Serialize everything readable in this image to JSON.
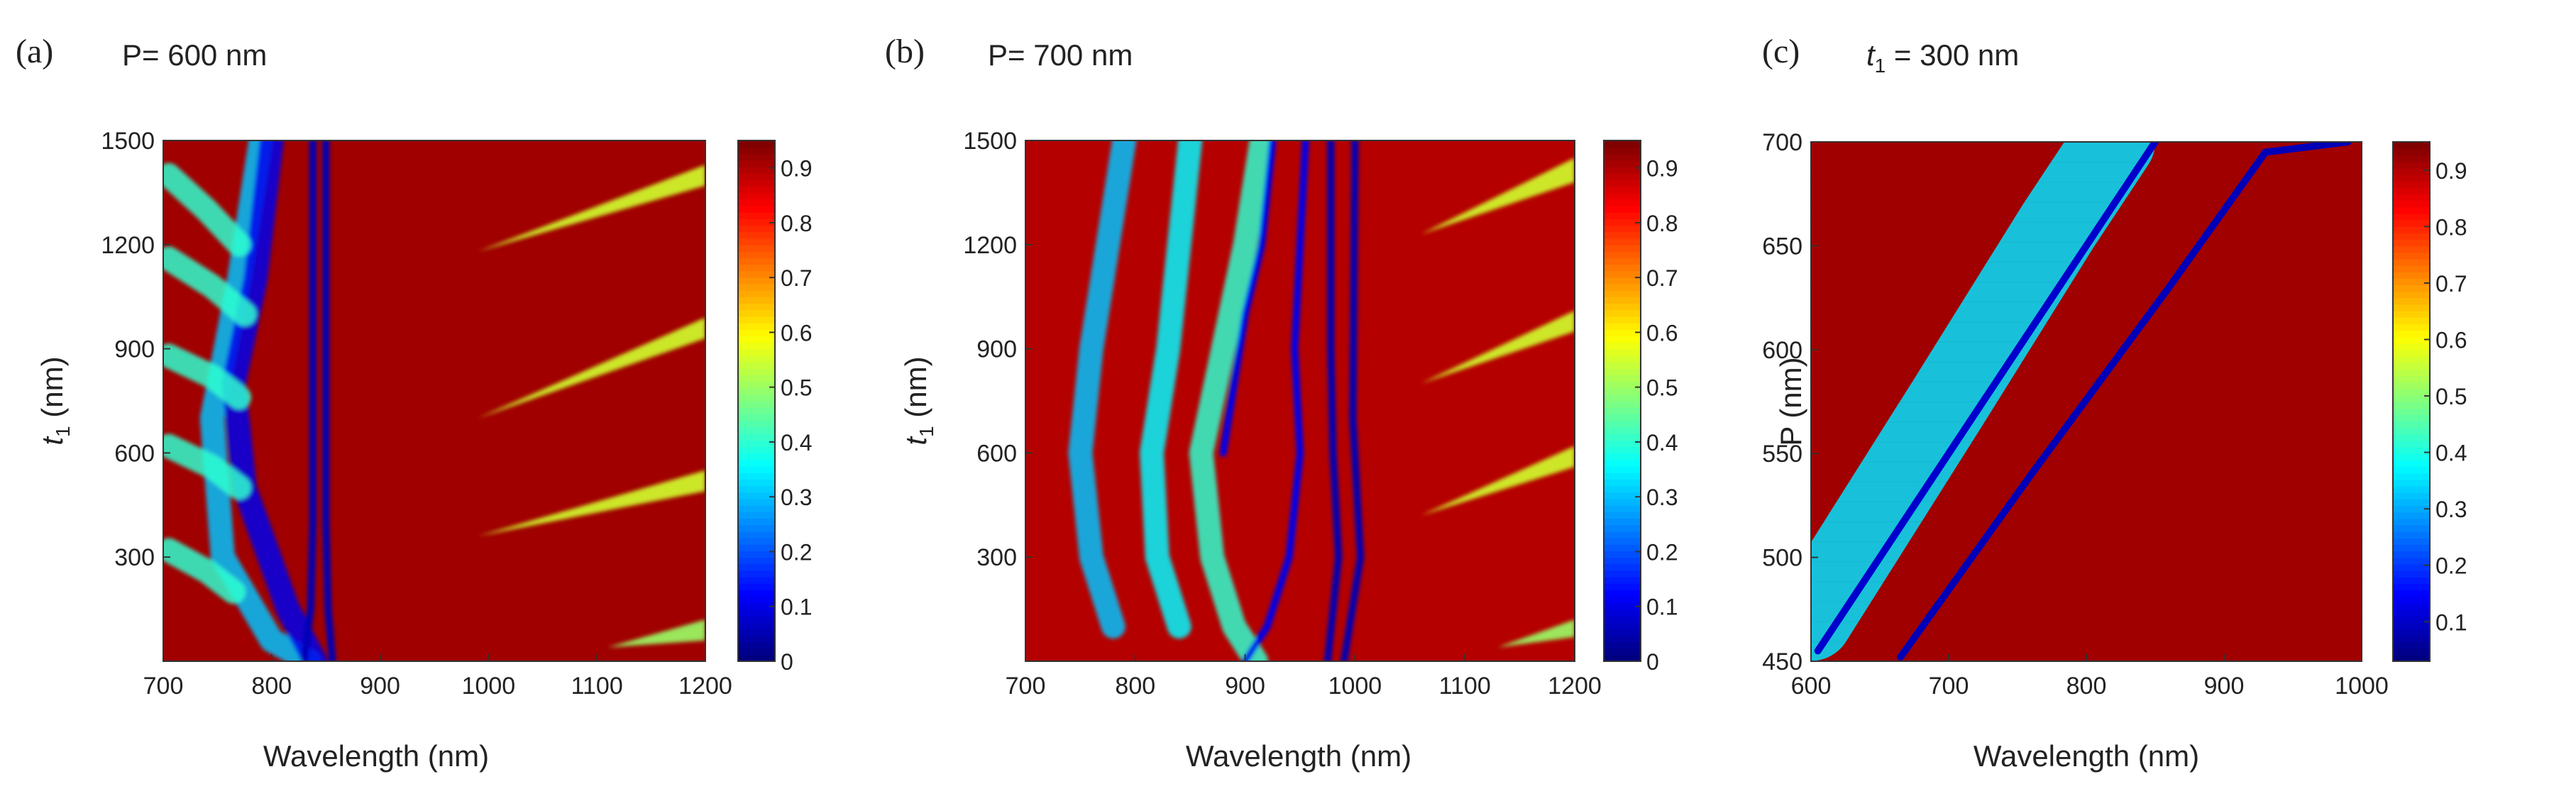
{
  "figure": {
    "panels": [
      {
        "letter": "(a)",
        "title": "P= 600 nm",
        "xlabel": "Wavelength (nm)",
        "ylabel_var": "t",
        "ylabel_sub": "1",
        "ylabel_unit": " (nm)",
        "colorbar_ticks": [
          "0",
          "0.1",
          "0.2",
          "0.3",
          "0.4",
          "0.5",
          "0.6",
          "0.7",
          "0.8",
          "0.9"
        ]
      },
      {
        "letter": "(b)",
        "title": "P= 700 nm",
        "xlabel": "Wavelength (nm)",
        "ylabel_var": "t",
        "ylabel_sub": "1",
        "ylabel_unit": " (nm)",
        "colorbar_ticks": [
          "0",
          "0.1",
          "0.2",
          "0.3",
          "0.4",
          "0.5",
          "0.6",
          "0.7",
          "0.8",
          "0.9"
        ]
      },
      {
        "letter": "(c)",
        "title_var": "t",
        "title_sub": "1",
        "title_rest": " = 300 nm",
        "xlabel": "Wavelength (nm)",
        "ylabel": "P  (nm)",
        "colorbar_ticks": [
          "0.1",
          "0.2",
          "0.3",
          "0.4",
          "0.5",
          "0.6",
          "0.7",
          "0.8",
          "0.9"
        ]
      }
    ]
  },
  "chart_data": [
    {
      "type": "heatmap",
      "panel": "(a)",
      "title": "P= 600 nm",
      "xlabel": "Wavelength (nm)",
      "ylabel": "t1 (nm)",
      "x_range": [
        700,
        1200
      ],
      "y_range": [
        0,
        1500
      ],
      "x_ticks": [
        700,
        800,
        900,
        1000,
        1100,
        1200
      ],
      "y_ticks": [
        300,
        600,
        900,
        1200,
        1500
      ],
      "color_range": [
        0,
        0.95
      ],
      "colorbar_ticks": [
        0,
        0.1,
        0.2,
        0.3,
        0.4,
        0.5,
        0.6,
        0.7,
        0.8,
        0.9
      ],
      "colormap": "jet",
      "background_value": 0.92,
      "features": [
        {
          "kind": "band",
          "points": [
            [
              790,
              1500
            ],
            [
              770,
              1100
            ],
            [
              745,
              700
            ],
            [
              755,
              300
            ],
            [
              800,
              60
            ],
            [
              835,
              0
            ]
          ],
          "value": 0.3
        },
        {
          "kind": "band",
          "points": [
            [
              800,
              1500
            ],
            [
              785,
              1100
            ],
            [
              765,
              800
            ],
            [
              775,
              500
            ],
            [
              815,
              150
            ],
            [
              840,
              0
            ]
          ],
          "value": 0.1
        },
        {
          "kind": "band",
          "points": [
            [
              705,
              1400
            ],
            [
              740,
              1300
            ],
            [
              770,
              1200
            ]
          ],
          "value": 0.4
        },
        {
          "kind": "band",
          "points": [
            [
              705,
              1160
            ],
            [
              745,
              1080
            ],
            [
              775,
              1000
            ]
          ],
          "value": 0.4
        },
        {
          "kind": "band",
          "points": [
            [
              705,
              880
            ],
            [
              745,
              820
            ],
            [
              770,
              760
            ]
          ],
          "value": 0.4
        },
        {
          "kind": "band",
          "points": [
            [
              705,
              620
            ],
            [
              745,
              560
            ],
            [
              770,
              500
            ]
          ],
          "value": 0.4
        },
        {
          "kind": "band",
          "points": [
            [
              705,
              320
            ],
            [
              740,
              260
            ],
            [
              765,
              200
            ]
          ],
          "value": 0.4
        },
        {
          "kind": "line",
          "points": [
            [
              838,
              1500
            ],
            [
              838,
              400
            ],
            [
              836,
              150
            ],
            [
              830,
              0
            ]
          ],
          "value": 0.05
        },
        {
          "kind": "line",
          "points": [
            [
              850,
              1500
            ],
            [
              850,
              400
            ],
            [
              852,
              150
            ],
            [
              856,
              0
            ]
          ],
          "value": 0.05
        },
        {
          "kind": "wedge",
          "points": [
            [
              1200,
              1430
            ],
            [
              990,
              1180
            ],
            [
              1200,
              1370
            ]
          ],
          "value": 0.55
        },
        {
          "kind": "wedge",
          "points": [
            [
              1200,
              990
            ],
            [
              990,
              700
            ],
            [
              1200,
              930
            ]
          ],
          "value": 0.55
        },
        {
          "kind": "wedge",
          "points": [
            [
              1200,
              550
            ],
            [
              990,
              360
            ],
            [
              1200,
              490
            ]
          ],
          "value": 0.55
        },
        {
          "kind": "wedge",
          "points": [
            [
              1200,
              120
            ],
            [
              1110,
              40
            ],
            [
              1200,
              60
            ]
          ],
          "value": 0.5
        }
      ]
    },
    {
      "type": "heatmap",
      "panel": "(b)",
      "title": "P= 700 nm",
      "xlabel": "Wavelength (nm)",
      "ylabel": "t1 (nm)",
      "x_range": [
        700,
        1200
      ],
      "y_range": [
        0,
        1500
      ],
      "x_ticks": [
        700,
        800,
        900,
        1000,
        1100,
        1200
      ],
      "y_ticks": [
        300,
        600,
        900,
        1200,
        1500
      ],
      "color_range": [
        0,
        0.95
      ],
      "colorbar_ticks": [
        0,
        0.1,
        0.2,
        0.3,
        0.4,
        0.5,
        0.6,
        0.7,
        0.8,
        0.9
      ],
      "colormap": "jet",
      "background_value": 0.9,
      "features": [
        {
          "kind": "band",
          "points": [
            [
              915,
              1500
            ],
            [
              900,
              1200
            ],
            [
              880,
              900
            ],
            [
              860,
              600
            ],
            [
              870,
              300
            ],
            [
              890,
              100
            ],
            [
              910,
              0
            ]
          ],
          "value": 0.4
        },
        {
          "kind": "band",
          "points": [
            [
              850,
              1500
            ],
            [
              840,
              1200
            ],
            [
              830,
              900
            ],
            [
              815,
              600
            ],
            [
              820,
              300
            ],
            [
              840,
              100
            ]
          ],
          "value": 0.35
        },
        {
          "kind": "band",
          "points": [
            [
              790,
              1500
            ],
            [
              775,
              1200
            ],
            [
              760,
              900
            ],
            [
              750,
              600
            ],
            [
              760,
              300
            ],
            [
              780,
              100
            ]
          ],
          "value": 0.3
        },
        {
          "kind": "line",
          "points": [
            [
              925,
              1500
            ],
            [
              915,
              1200
            ],
            [
              900,
              1000
            ],
            [
              890,
              800
            ],
            [
              880,
              600
            ]
          ],
          "value": 0.1
        },
        {
          "kind": "line",
          "points": [
            [
              955,
              1500
            ],
            [
              950,
              1200
            ],
            [
              945,
              900
            ],
            [
              950,
              600
            ],
            [
              940,
              300
            ],
            [
              920,
              100
            ],
            [
              900,
              0
            ]
          ],
          "value": 0.1
        },
        {
          "kind": "line",
          "points": [
            [
              978,
              1500
            ],
            [
              978,
              900
            ],
            [
              980,
              600
            ],
            [
              985,
              300
            ],
            [
              975,
              0
            ]
          ],
          "value": 0.05
        },
        {
          "kind": "line",
          "points": [
            [
              1000,
              1500
            ],
            [
              998,
              700
            ],
            [
              1005,
              300
            ],
            [
              990,
              0
            ]
          ],
          "value": 0.05
        },
        {
          "kind": "wedge",
          "points": [
            [
              1200,
              1450
            ],
            [
              1060,
              1230
            ],
            [
              1200,
              1380
            ]
          ],
          "value": 0.55
        },
        {
          "kind": "wedge",
          "points": [
            [
              1200,
              1010
            ],
            [
              1060,
              800
            ],
            [
              1200,
              950
            ]
          ],
          "value": 0.55
        },
        {
          "kind": "wedge",
          "points": [
            [
              1200,
              620
            ],
            [
              1060,
              420
            ],
            [
              1200,
              560
            ]
          ],
          "value": 0.55
        },
        {
          "kind": "wedge",
          "points": [
            [
              1200,
              120
            ],
            [
              1130,
              40
            ],
            [
              1200,
              70
            ]
          ],
          "value": 0.5
        }
      ]
    },
    {
      "type": "heatmap",
      "panel": "(c)",
      "title": "t1 = 300 nm",
      "xlabel": "Wavelength (nm)",
      "ylabel": "P (nm)",
      "x_range": [
        600,
        1000
      ],
      "y_range": [
        450,
        700
      ],
      "x_ticks": [
        600,
        700,
        800,
        900,
        1000
      ],
      "y_ticks": [
        450,
        500,
        550,
        600,
        650,
        700
      ],
      "color_range": [
        0.03,
        0.95
      ],
      "colorbar_ticks": [
        0.1,
        0.2,
        0.3,
        0.4,
        0.5,
        0.6,
        0.7,
        0.8,
        0.9
      ],
      "colormap": "jet",
      "background_value": 0.92,
      "steps": 26,
      "features": [
        {
          "kind": "band",
          "points": [
            [
              600,
              470
            ],
            [
              700,
              575
            ],
            [
              780,
              660
            ],
            [
              820,
              700
            ]
          ],
          "value": 0.35,
          "width_nm": 60
        },
        {
          "kind": "line",
          "points": [
            [
              605,
              455
            ],
            [
              650,
              500
            ],
            [
              700,
              550
            ],
            [
              760,
              610
            ],
            [
              820,
              670
            ],
            [
              850,
              700
            ]
          ],
          "value": 0.1
        },
        {
          "kind": "line",
          "points": [
            [
              665,
              452
            ],
            [
              760,
              540
            ],
            [
              860,
              630
            ],
            [
              930,
              695
            ],
            [
              990,
              700
            ]
          ],
          "value": 0.08
        }
      ]
    }
  ]
}
